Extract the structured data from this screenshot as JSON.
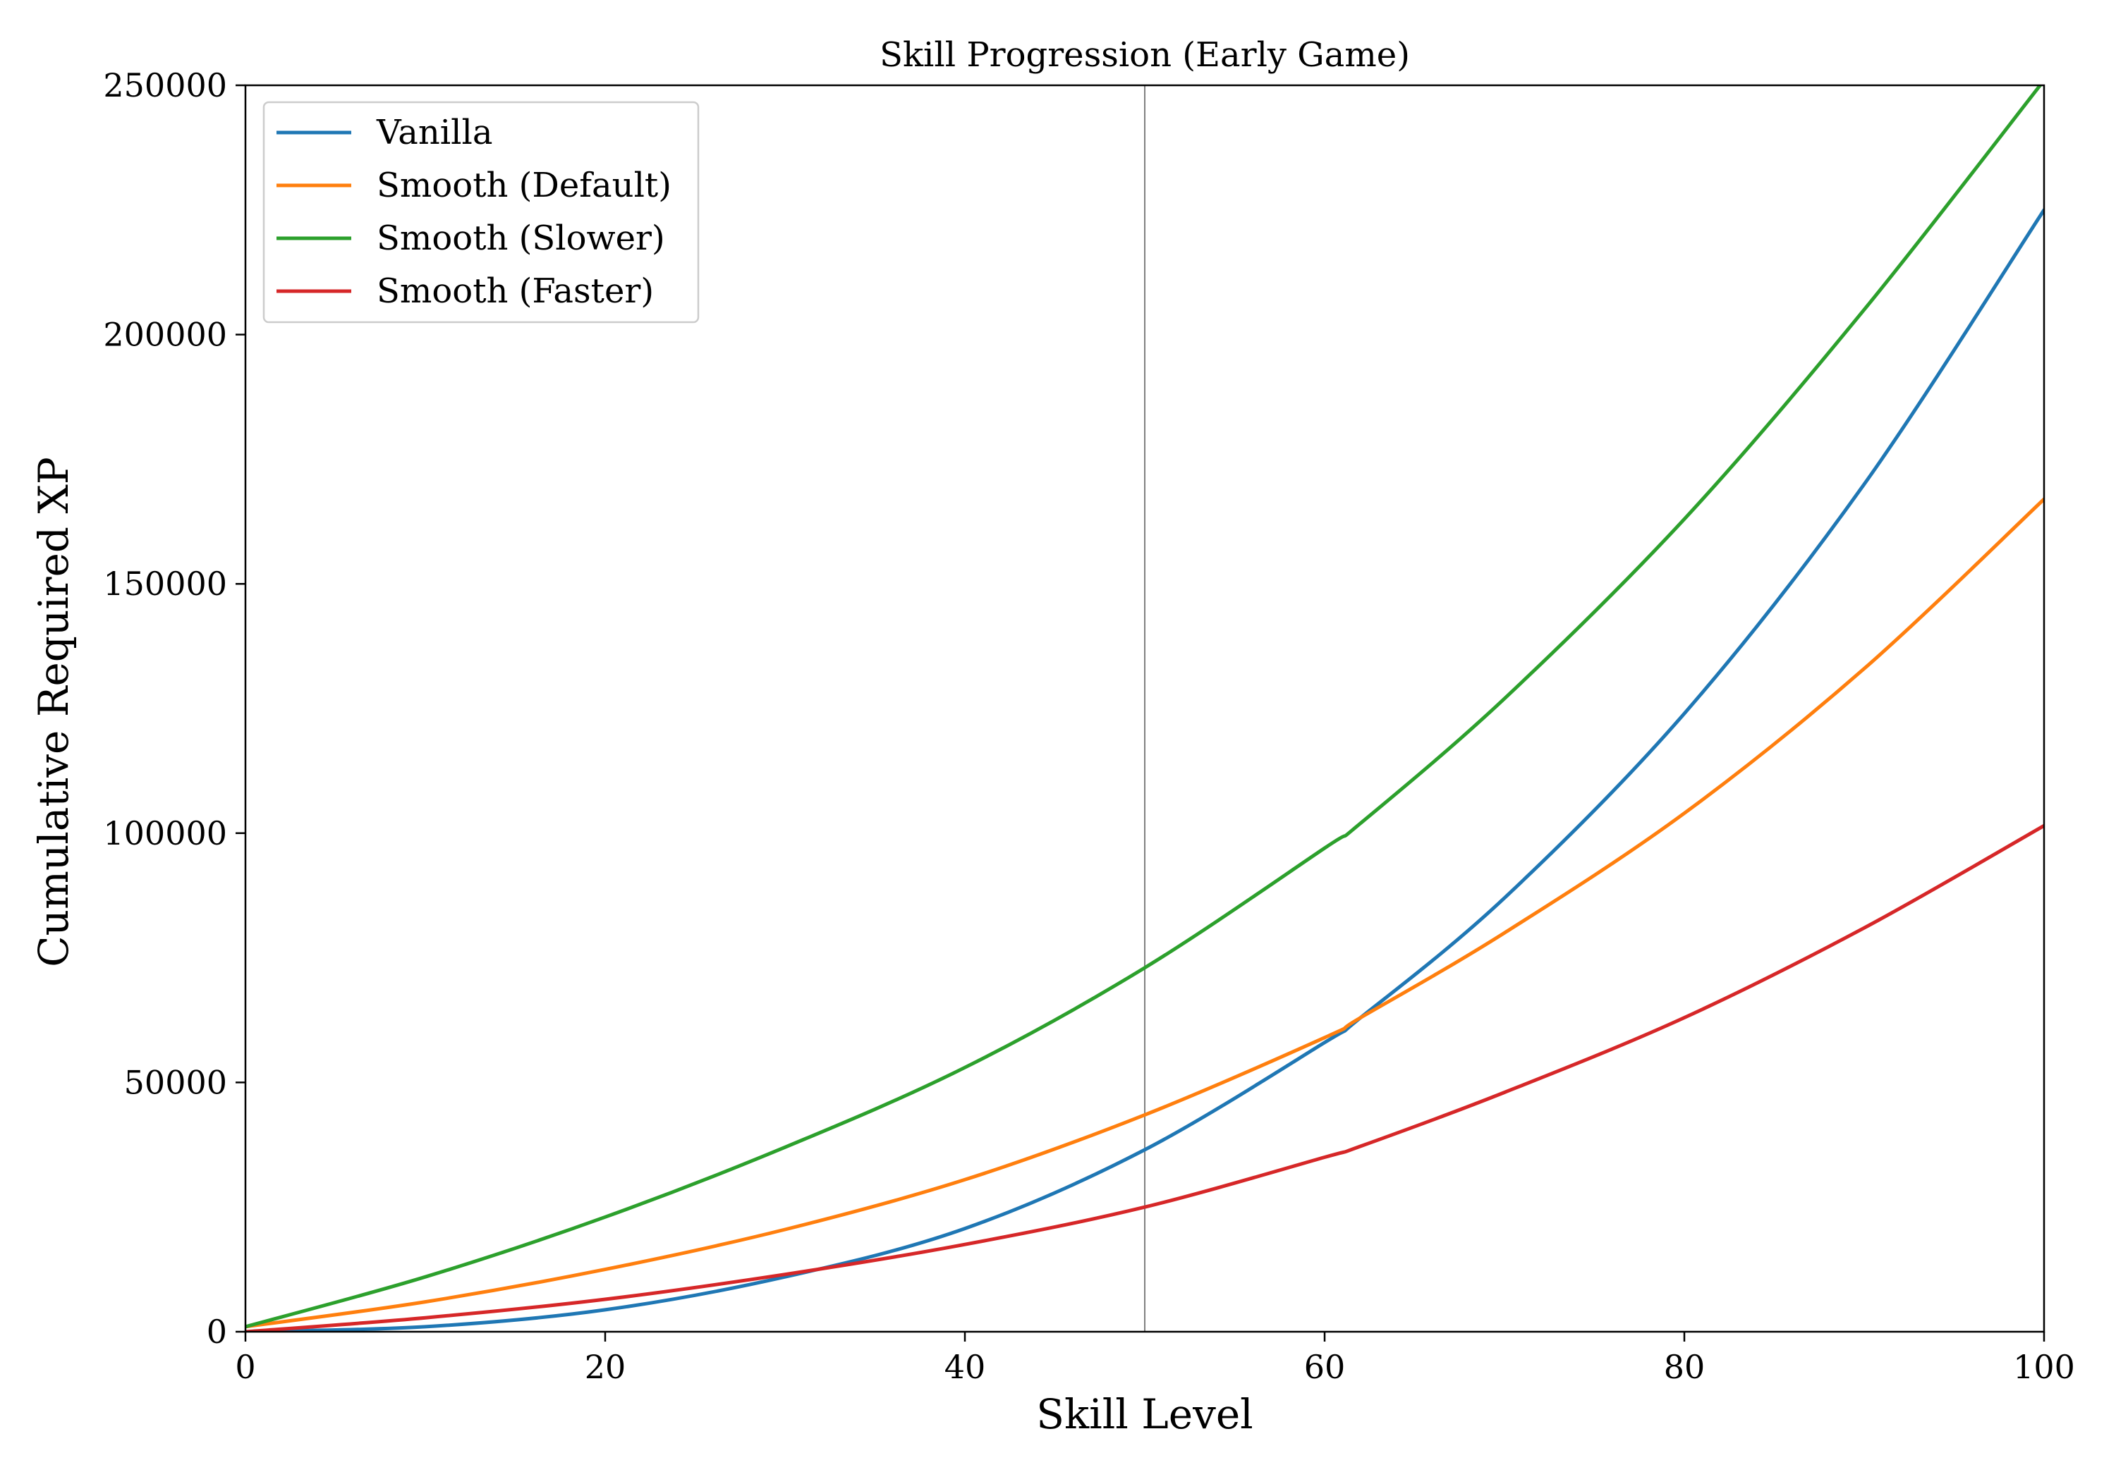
{
  "chart_data": {
    "type": "line",
    "title": "Skill Progression (Early Game)",
    "xlabel": "Skill Level",
    "ylabel": "Cumulative Required XP",
    "xlim": [
      0,
      100
    ],
    "ylim": [
      0,
      250000
    ],
    "x_ticks": [
      0,
      20,
      40,
      60,
      80,
      100
    ],
    "x_tick_labels": [
      "0",
      "20",
      "40",
      "60",
      "80",
      "100"
    ],
    "y_ticks": [
      0,
      50000,
      100000,
      150000,
      200000,
      250000
    ],
    "y_tick_labels": [
      "0",
      "50000",
      "100000",
      "150000",
      "200000",
      "250000"
    ],
    "grid": false,
    "legend_position": "top-left",
    "reference_line_x": 50,
    "x": [
      0,
      10,
      20,
      30,
      40,
      50,
      60,
      62,
      70,
      80,
      90,
      100
    ],
    "series": [
      {
        "name": "Vanilla",
        "color": "#1f77b4",
        "values": [
          0,
          1000,
          4400,
          11000,
          20700,
          36500,
          58000,
          63000,
          87000,
          124000,
          170000,
          225000
        ]
      },
      {
        "name": "Smooth (Default)",
        "color": "#ff7f0e",
        "values": [
          1000,
          6000,
          12500,
          20500,
          30500,
          43500,
          59000,
          63000,
          80000,
          104000,
          133000,
          167000
        ]
      },
      {
        "name": "Smooth (Slower)",
        "color": "#2ca02c",
        "values": [
          1000,
          11000,
          23000,
          37000,
          53000,
          73000,
          97000,
          102000,
          127000,
          163000,
          205000,
          251000
        ]
      },
      {
        "name": "Smooth (Faster)",
        "color": "#d62728",
        "values": [
          0,
          2800,
          6500,
          11500,
          17500,
          25000,
          35000,
          37200,
          48000,
          63000,
          81000,
          101500
        ]
      }
    ]
  }
}
